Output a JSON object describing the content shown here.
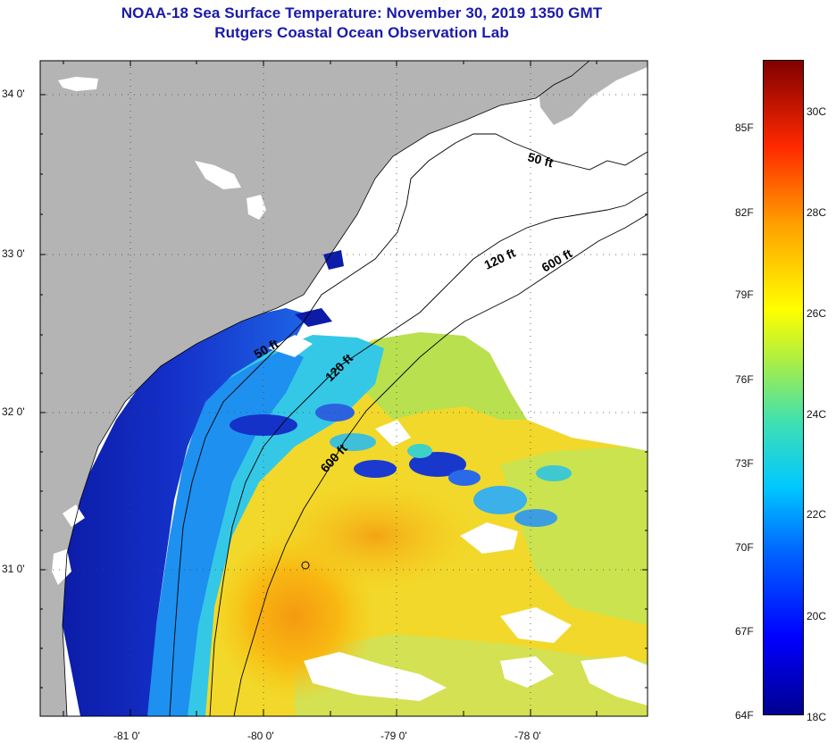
{
  "header": {
    "title": "NOAA-18 Sea Surface Temperature:  November 30, 2019 1350 GMT",
    "subtitle": "Rutgers Coastal Ocean Observation Lab"
  },
  "map": {
    "latitude_labels": [
      "34 0'",
      "33 0'",
      "32 0'",
      "31 0'"
    ],
    "longitude_labels": [
      "-81 0'",
      "-80 0'",
      "-79 0'",
      "-78 0'"
    ],
    "isobath_labels": [
      "50 ft",
      "120 ft",
      "600 ft",
      "50 ft",
      "120 ft",
      "600 ft"
    ]
  },
  "colorbar": {
    "fahrenheit_labels": [
      "85F",
      "82F",
      "79F",
      "76F",
      "73F",
      "70F",
      "67F",
      "64F"
    ],
    "celsius_labels": [
      "30C",
      "28C",
      "26C",
      "24C",
      "22C",
      "20C",
      "18C"
    ]
  },
  "colors": {
    "land": "#b4b4b4",
    "cloud": "#ffffff",
    "title": "#1a1aa8"
  }
}
